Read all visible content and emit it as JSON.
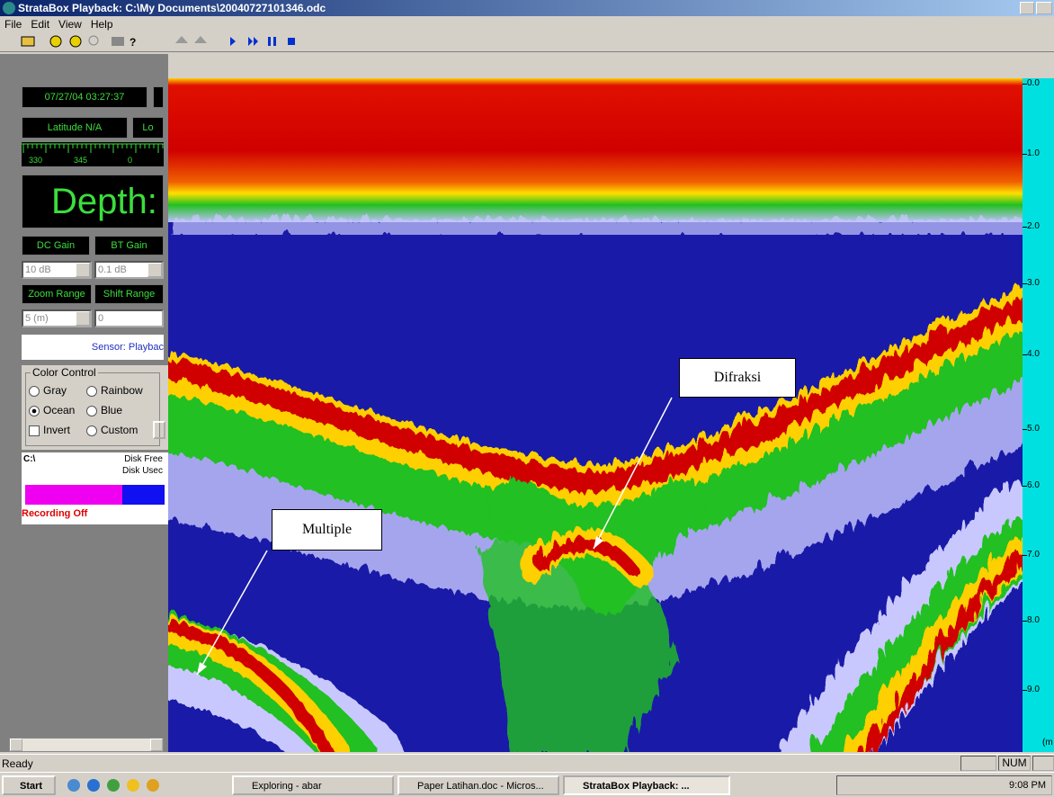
{
  "window": {
    "title": "StrataBox Playback: C:\\My Documents\\20040727101346.odc"
  },
  "menu": [
    "File",
    "Edit",
    "View",
    "Help"
  ],
  "panel": {
    "datetime": "07/27/04 03:27:37",
    "latitude": "Latitude N/A",
    "longitude": "Lo",
    "compass": [
      "330",
      "345",
      "0"
    ],
    "depth": "Depth:",
    "gain_labels": [
      "DC Gain",
      "BT Gain"
    ],
    "gain_values": [
      "10 dB",
      "0.1 dB"
    ],
    "range_labels": [
      "Zoom Range",
      "Shift Range"
    ],
    "range_values": [
      "5 (m)",
      "0"
    ],
    "sensor": "Sensor: Playbac",
    "color_control": {
      "title": "Color Control",
      "options": [
        "Gray",
        "Rainbow",
        "Ocean",
        "Blue",
        "Invert",
        "Custom"
      ]
    },
    "disk": {
      "drive": "C:\\",
      "free": "Disk Free",
      "used": "Disk Usec"
    },
    "recording": "Recording Off"
  },
  "scale": {
    "labels": [
      "0.0",
      "1.0",
      "2.0",
      "3.0",
      "4.0",
      "5.0",
      "6.0",
      "7.0",
      "8.0",
      "9.0"
    ],
    "unit": "(m"
  },
  "annotations": [
    "Difraksi",
    "Multiple"
  ],
  "status": {
    "left": "Ready",
    "num": "NUM"
  },
  "taskbar": {
    "start": "Start",
    "tasks": [
      "Exploring - abar",
      "Paper Latihan.doc - Micros...",
      "StrataBox Playback: ..."
    ],
    "clock": "9:08 PM"
  }
}
